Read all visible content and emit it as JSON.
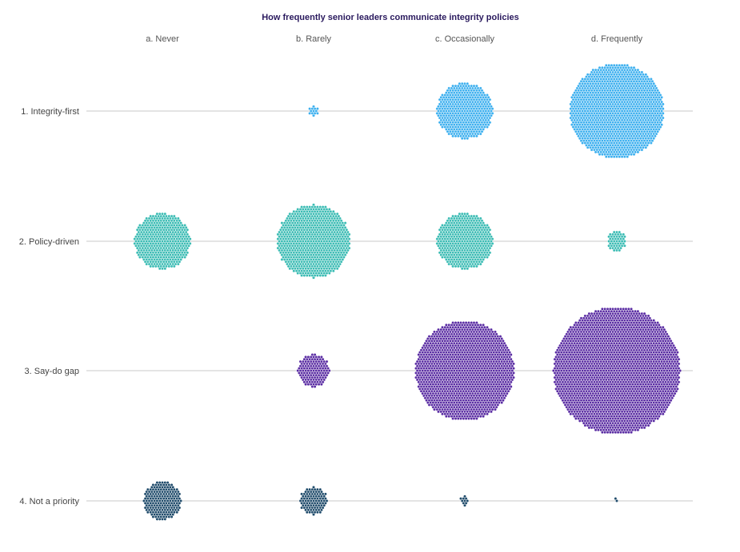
{
  "chart_data": {
    "type": "scatter",
    "subtype": "packed-dot matrix",
    "title": "How frequently senior leaders communicate integrity policies",
    "columns": [
      "a. Never",
      "b. Rarely",
      "c. Occasionally",
      "d. Frequently"
    ],
    "rows": [
      {
        "label": "1. Integrity-first",
        "color": "#3db0ef",
        "counts": [
          0,
          13,
          410,
          1160
        ]
      },
      {
        "label": "2. Policy-driven",
        "color": "#3bbcb4",
        "counts": [
          410,
          690,
          410,
          50
        ]
      },
      {
        "label": "3. Say-do gap",
        "color": "#5a2ca3",
        "counts": [
          0,
          133,
          1280,
          2100
        ]
      },
      {
        "label": "4. Not a priority",
        "color": "#1f4b6b",
        "counts": [
          190,
          96,
          10,
          2
        ]
      }
    ],
    "grid": "horizontal row lines"
  }
}
